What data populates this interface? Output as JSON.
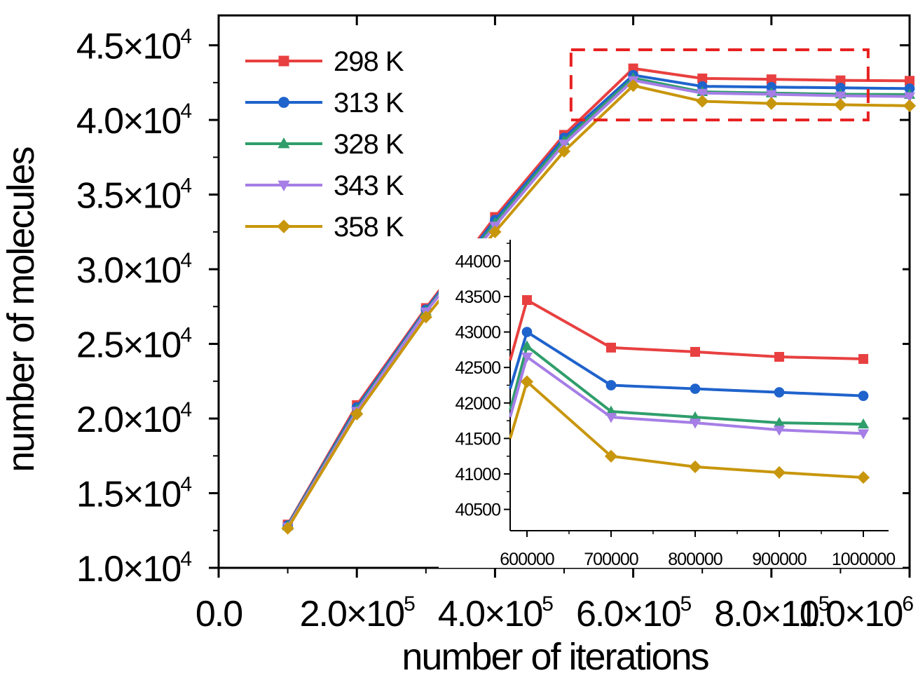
{
  "chart_data": [
    {
      "type": "line",
      "xlabel": "number of iterations",
      "ylabel": "number of molecules",
      "xlim": [
        0,
        1000000
      ],
      "ylim": [
        10000,
        47000
      ],
      "x_tick_labels": [
        "0.0",
        "2.0×10^5",
        "4.0×10^5",
        "6.0×10^5",
        "8.0×10^5",
        "1.0×10^6"
      ],
      "y_tick_labels": [
        "1.0×10^4",
        "1.5×10^4",
        "2.0×10^4",
        "2.5×10^4",
        "3.0×10^4",
        "3.5×10^4",
        "4.0×10^4",
        "4.5×10^4"
      ],
      "x": [
        100000,
        200000,
        300000,
        400000,
        500000,
        600000,
        700000,
        800000,
        900000,
        1000000
      ],
      "series": [
        {
          "name": "298 K",
          "color": "#e84040",
          "marker": "square",
          "values": [
            12900,
            20900,
            27400,
            33500,
            39000,
            43450,
            42780,
            42720,
            42650,
            42620
          ]
        },
        {
          "name": "313 K",
          "color": "#1f63cc",
          "marker": "circle",
          "values": [
            12850,
            20750,
            27300,
            33300,
            38800,
            43000,
            42250,
            42200,
            42150,
            42100
          ]
        },
        {
          "name": "328 K",
          "color": "#2f9e6b",
          "marker": "triangle-up",
          "values": [
            12800,
            20600,
            27200,
            33100,
            38600,
            42800,
            41880,
            41800,
            41720,
            41700
          ]
        },
        {
          "name": "343 K",
          "color": "#a67ee6",
          "marker": "triangle-down",
          "values": [
            12750,
            20500,
            27150,
            32900,
            38400,
            42650,
            41800,
            41720,
            41620,
            41570
          ]
        },
        {
          "name": "358 K",
          "color": "#c8960c",
          "marker": "diamond",
          "values": [
            12650,
            20300,
            26800,
            32500,
            37900,
            42300,
            41250,
            41100,
            41020,
            40950
          ]
        }
      ],
      "legend_position": "top-left",
      "grid": false,
      "zoom_box": {
        "x": [
          510000,
          940000
        ],
        "y": [
          40000,
          44700
        ],
        "color": "#e82020",
        "style": "dashed"
      }
    },
    {
      "type": "line",
      "role": "inset",
      "xlim": [
        580000,
        1030000
      ],
      "ylim": [
        40200,
        44300
      ],
      "x_ticks": [
        600000,
        700000,
        800000,
        900000,
        1000000
      ],
      "y_ticks": [
        40500,
        41000,
        41500,
        42000,
        42500,
        43000,
        43500,
        44000
      ],
      "x": [
        600000,
        700000,
        800000,
        900000,
        1000000
      ],
      "series_entry_values": [
        42600,
        42200,
        41900,
        41800,
        41500
      ],
      "series": [
        {
          "name": "298 K",
          "color": "#e84040",
          "marker": "square",
          "values": [
            43450,
            42780,
            42720,
            42650,
            42620
          ]
        },
        {
          "name": "313 K",
          "color": "#1f63cc",
          "marker": "circle",
          "values": [
            43000,
            42250,
            42200,
            42150,
            42100
          ]
        },
        {
          "name": "328 K",
          "color": "#2f9e6b",
          "marker": "triangle-up",
          "values": [
            42800,
            41880,
            41800,
            41720,
            41700
          ]
        },
        {
          "name": "343 K",
          "color": "#a67ee6",
          "marker": "triangle-down",
          "values": [
            42650,
            41800,
            41720,
            41620,
            41570
          ]
        },
        {
          "name": "358 K",
          "color": "#c8960c",
          "marker": "diamond",
          "values": [
            42300,
            41250,
            41100,
            41020,
            40950
          ]
        }
      ],
      "grid": false
    }
  ]
}
